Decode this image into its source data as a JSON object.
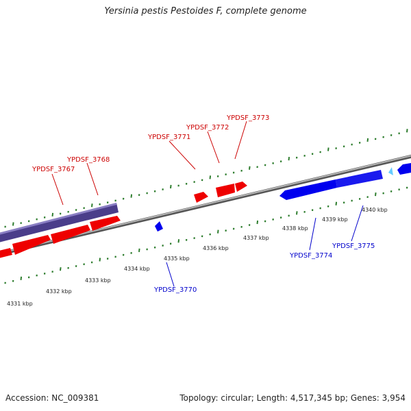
{
  "title": "Yersinia pestis Pestoides F, complete genome",
  "footer": {
    "accession": "Accession: NC_009381",
    "summary": "Topology: circular; Length: 4,517,345 bp; Genes: 3,954"
  },
  "colors": {
    "forward_gene": "#ff0000",
    "reverse_gene": "#0000ff",
    "forward_label": "#cc0000",
    "reverse_label": "#0000cc",
    "operon": "#5a4c99",
    "ticks": "#2e7d2e",
    "backbone": "#888888",
    "small_marker": "#66ccff"
  },
  "scale_ticks": [
    "4331 kbp",
    "4332 kbp",
    "4333 kbp",
    "4334 kbp",
    "4335 kbp",
    "4336 kbp",
    "4337 kbp",
    "4338 kbp",
    "4339 kbp",
    "4340 kbp"
  ],
  "genes": [
    {
      "name": "YPDSF_3767",
      "strand": "forward"
    },
    {
      "name": "YPDSF_3768",
      "strand": "forward"
    },
    {
      "name": "YPDSF_3770",
      "strand": "reverse"
    },
    {
      "name": "YPDSF_3771",
      "strand": "forward"
    },
    {
      "name": "YPDSF_3772",
      "strand": "forward"
    },
    {
      "name": "YPDSF_3773",
      "strand": "forward"
    },
    {
      "name": "YPDSF_3774",
      "strand": "reverse"
    },
    {
      "name": "YPDSF_3775",
      "strand": "reverse"
    }
  ]
}
